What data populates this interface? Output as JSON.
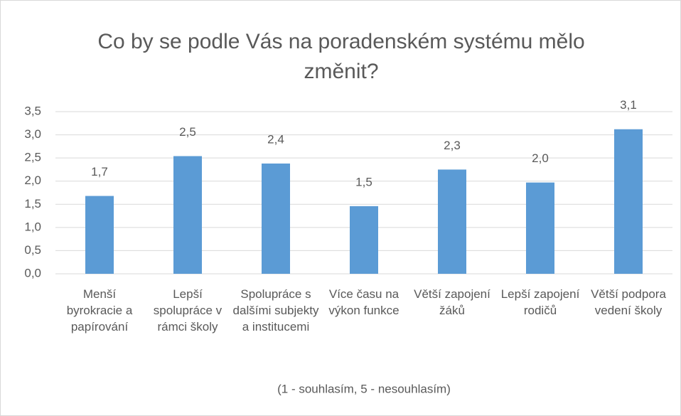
{
  "chart_data": {
    "type": "bar",
    "title": "Co by se podle Vás na poradenském systému mělo změnit?",
    "x_label": "(1 - souhlasím, 5 - nesouhlasím)",
    "categories": [
      "Menší byrokracie a papírování",
      "Lepší spolupráce v rámci školy",
      "Spolupráce s dalšími subjekty a institucemi",
      "Více času na výkon funkce",
      "Větší zapojení žáků",
      "Lepší zapojení rodičů",
      "Větší podpora vedení školy"
    ],
    "values": [
      1.68,
      2.54,
      2.38,
      1.46,
      2.25,
      1.97,
      3.12
    ],
    "value_labels": [
      "1,7",
      "2,5",
      "2,4",
      "1,5",
      "2,3",
      "2,0",
      "3,1"
    ],
    "color": "#5b9bd5",
    "ylim": [
      0,
      3.5
    ],
    "yticks": [
      {
        "value": 0,
        "label": "0,0"
      },
      {
        "value": 0.5,
        "label": "0,5"
      },
      {
        "value": 1,
        "label": "1,0"
      },
      {
        "value": 1.5,
        "label": "1,5"
      },
      {
        "value": 2,
        "label": "2,0"
      },
      {
        "value": 2.5,
        "label": "2,5"
      },
      {
        "value": 3,
        "label": "3,0"
      },
      {
        "value": 3.5,
        "label": "3,5"
      }
    ],
    "grid": true
  }
}
